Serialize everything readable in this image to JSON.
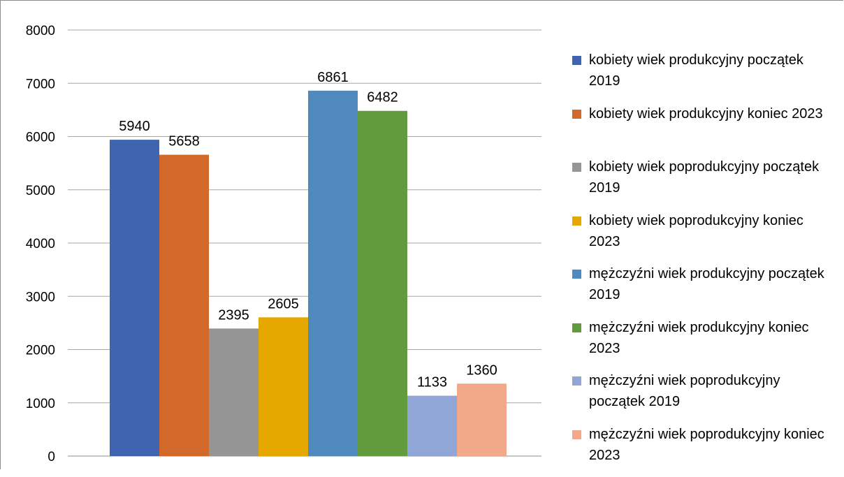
{
  "chart_data": {
    "type": "bar",
    "title": "",
    "xlabel": "",
    "ylabel": "",
    "ylim": [
      0,
      8000
    ],
    "yticks": [
      0,
      1000,
      2000,
      3000,
      4000,
      5000,
      6000,
      7000,
      8000
    ],
    "grid": true,
    "legend_position": "right",
    "data_labels": true,
    "series": [
      {
        "name": "kobiety wiek produkcyjny początek 2019",
        "value": 5940,
        "color": "#3f65b0"
      },
      {
        "name": "kobiety wiek produkcyjny koniec 2023",
        "value": 5658,
        "color": "#d2692a"
      },
      {
        "name": "kobiety wiek poprodukcyjny początek 2019",
        "value": 2395,
        "color": "#959595"
      },
      {
        "name": "kobiety wiek poprodukcyjny koniec 2023",
        "value": 2605,
        "color": "#e5a800"
      },
      {
        "name": "mężczyźni wiek produkcyjny początek 2019",
        "value": 6861,
        "color": "#4f89be"
      },
      {
        "name": "mężczyźni wiek produkcyjny koniec 2023",
        "value": 6482,
        "color": "#629a3e"
      },
      {
        "name": "mężczyźni wiek poprodukcyjny początek 2019",
        "value": 1133,
        "color": "#90a6d6"
      },
      {
        "name": "mężczyźni wiek poprodukcyjny koniec 2023",
        "value": 1360,
        "color": "#f1a98a"
      }
    ]
  }
}
